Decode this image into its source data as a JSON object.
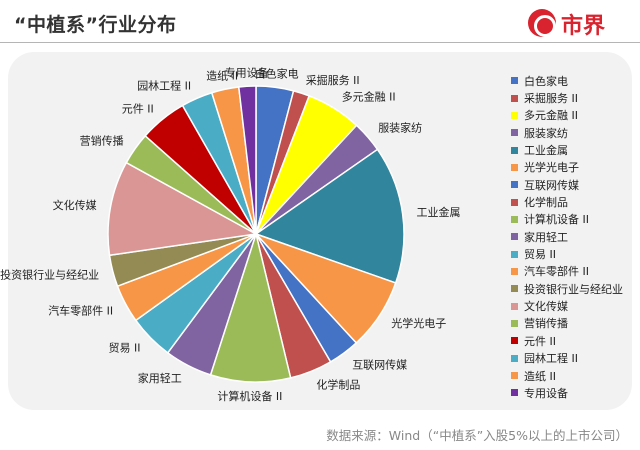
{
  "header": {
    "title": "“中植系”行业分布",
    "logo_text": "市界"
  },
  "source_note": "数据来源：Wind（“中植系”入股5%以上的上市公司）",
  "chart_data": {
    "type": "pie",
    "title": "",
    "legend_position": "right",
    "slices": [
      {
        "label": "白色家电",
        "value": 4.4,
        "color": "#4472c4"
      },
      {
        "label": "采掘服务 II",
        "value": 1.9,
        "color": "#c0504d"
      },
      {
        "label": "多元金融 II",
        "value": 6.5,
        "color": "#ffff00"
      },
      {
        "label": "服装家纺",
        "value": 3.7,
        "color": "#8064a2"
      },
      {
        "label": "工业金属",
        "value": 16.2,
        "color": "#31859c"
      },
      {
        "label": "光学光电子",
        "value": 8.4,
        "color": "#f79646"
      },
      {
        "label": "互联网传媒",
        "value": 3.7,
        "color": "#4472c4"
      },
      {
        "label": "化学制品",
        "value": 5.0,
        "color": "#c0504d"
      },
      {
        "label": "计算机设备 II",
        "value": 9.4,
        "color": "#9bbb59"
      },
      {
        "label": "家用轻工",
        "value": 5.6,
        "color": "#8064a2"
      },
      {
        "label": "贸易 II",
        "value": 5.3,
        "color": "#4bacc6"
      },
      {
        "label": "汽车零部件 II",
        "value": 4.5,
        "color": "#f79646"
      },
      {
        "label": "投资银行业与经纪业",
        "value": 3.7,
        "color": "#948a54"
      },
      {
        "label": "文化传媒",
        "value": 11.1,
        "color": "#d99694"
      },
      {
        "label": "营销传播",
        "value": 3.8,
        "color": "#9bbb59"
      },
      {
        "label": "元件 II",
        "value": 5.6,
        "color": "#c00000"
      },
      {
        "label": "园林工程 II",
        "value": 3.7,
        "color": "#4bacc6"
      },
      {
        "label": "造纸 II",
        "value": 3.2,
        "color": "#f79646"
      },
      {
        "label": "专用设备",
        "value": 2.0,
        "color": "#7030a0"
      }
    ]
  }
}
